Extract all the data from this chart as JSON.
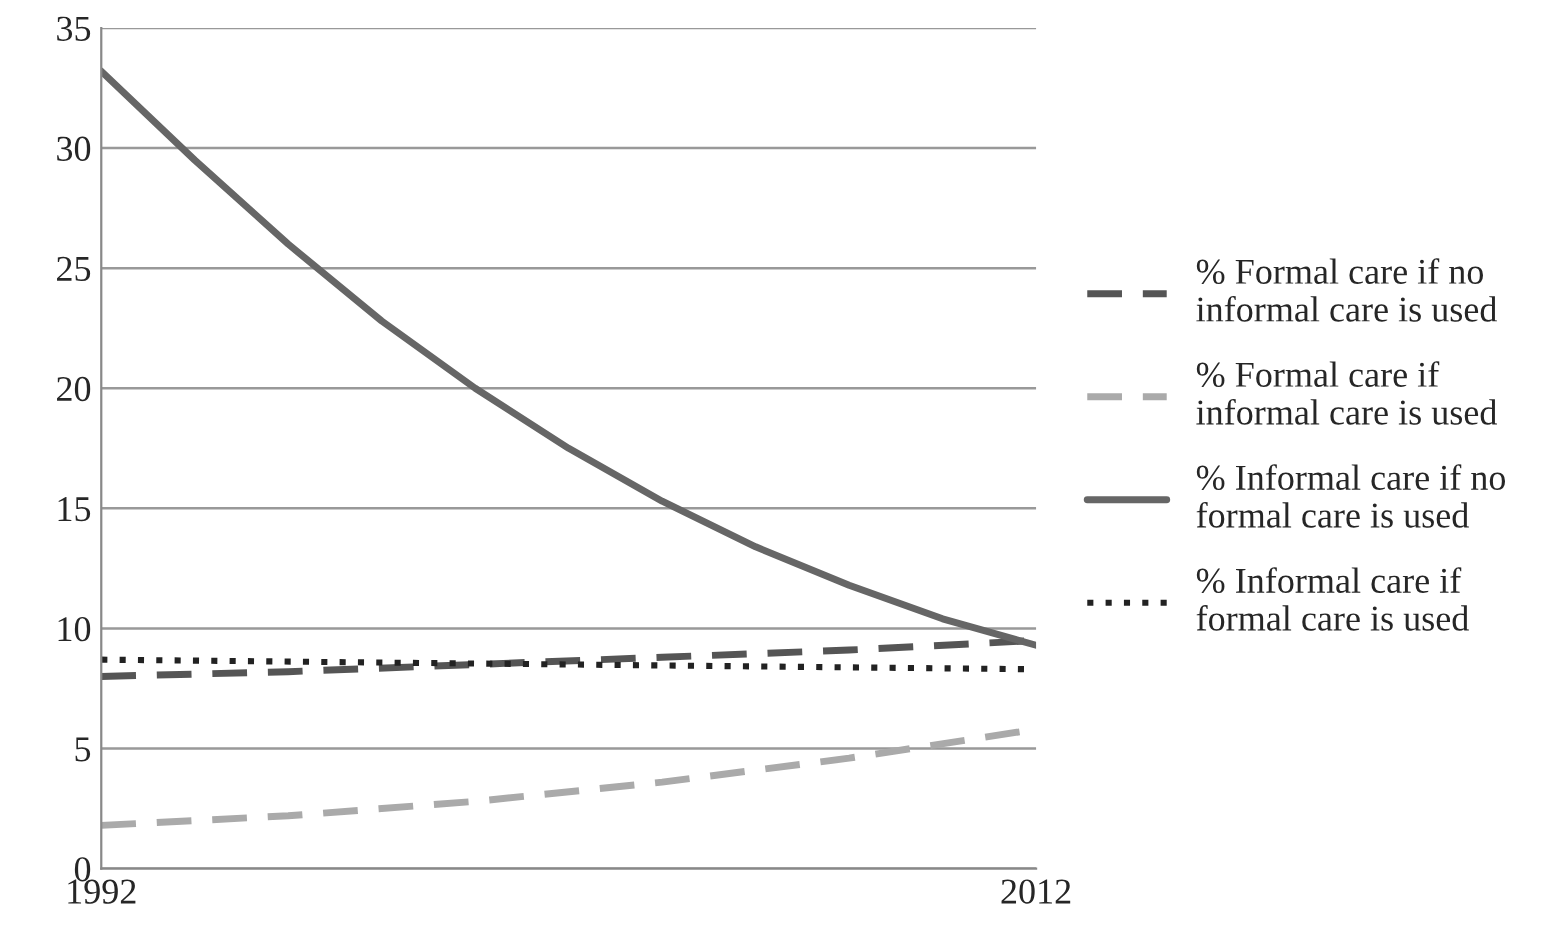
{
  "chart_data": {
    "type": "line",
    "xlim": [
      1992,
      2012
    ],
    "xticks": [
      1992,
      2012
    ],
    "ylim": [
      0,
      35
    ],
    "yticks": [
      0,
      5,
      10,
      15,
      20,
      25,
      30,
      35
    ],
    "grid": "y",
    "legend": "right",
    "marker": "none",
    "series": [
      {
        "name": "% Formal care if no\ninformal care is used",
        "color": "#555555",
        "line_style": "dashed",
        "x": [
          1992,
          1996,
          2000,
          2004,
          2008,
          2012
        ],
        "values": [
          8.0,
          8.2,
          8.5,
          8.8,
          9.1,
          9.5
        ]
      },
      {
        "name": "% Formal care if\ninformal care is used",
        "color": "#aaaaaa",
        "line_style": "dashed",
        "x": [
          1992,
          1996,
          2000,
          2004,
          2008,
          2012
        ],
        "values": [
          1.8,
          2.2,
          2.8,
          3.6,
          4.6,
          5.8
        ]
      },
      {
        "name": "% Informal care if no\nformal care is used",
        "color": "#666666",
        "line_style": "solid",
        "x": [
          1992,
          1994,
          1996,
          1998,
          2000,
          2002,
          2004,
          2006,
          2008,
          2010,
          2012
        ],
        "values": [
          33.2,
          29.5,
          26.0,
          22.8,
          20.0,
          17.5,
          15.3,
          13.4,
          11.8,
          10.4,
          9.3
        ]
      },
      {
        "name": "% Informal care if\nformal care is used",
        "color": "#222222",
        "line_style": "dotted",
        "x": [
          1992,
          2002,
          2012
        ],
        "values": [
          8.7,
          8.5,
          8.3
        ]
      }
    ]
  }
}
